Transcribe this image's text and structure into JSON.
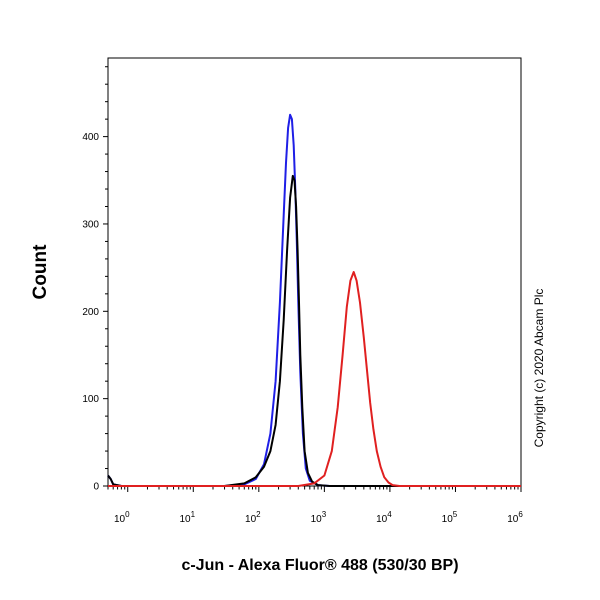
{
  "chart_data": {
    "type": "line",
    "title": "",
    "xlabel": "c-Jun - Alexa Fluor® 488 (530/30 BP)",
    "ylabel": "Count",
    "xscale": "log",
    "xlim": [
      0.5,
      1000000
    ],
    "ylim": [
      0,
      490
    ],
    "y_ticks": [
      0,
      100,
      200,
      300,
      400
    ],
    "x_ticks": [
      {
        "value": 1,
        "base": "10",
        "exp": "0"
      },
      {
        "value": 10,
        "base": "10",
        "exp": "1"
      },
      {
        "value": 100,
        "base": "10",
        "exp": "2"
      },
      {
        "value": 1000,
        "base": "10",
        "exp": "3"
      },
      {
        "value": 10000,
        "base": "10",
        "exp": "4"
      },
      {
        "value": 100000,
        "base": "10",
        "exp": "5"
      },
      {
        "value": 1000000,
        "base": "10",
        "exp": "6"
      }
    ],
    "grid": false,
    "series": [
      {
        "color": "#1f1fe6",
        "x": [
          0.5,
          0.55,
          0.6,
          0.8,
          5,
          30,
          60,
          90,
          120,
          150,
          180,
          210,
          240,
          260,
          280,
          300,
          320,
          340,
          360,
          380,
          400,
          430,
          470,
          520,
          600,
          800,
          1200,
          10000,
          1000000
        ],
        "y": [
          12,
          8,
          2,
          0,
          0,
          0,
          2,
          8,
          25,
          60,
          120,
          210,
          310,
          370,
          410,
          425,
          420,
          390,
          340,
          280,
          210,
          130,
          60,
          20,
          6,
          1,
          0,
          0,
          0
        ]
      },
      {
        "color": "#000000",
        "x": [
          0.5,
          0.55,
          0.6,
          0.8,
          5,
          30,
          60,
          90,
          120,
          150,
          180,
          210,
          240,
          270,
          300,
          330,
          350,
          370,
          390,
          410,
          430,
          460,
          500,
          560,
          650,
          800,
          1200,
          10000,
          1000000
        ],
        "y": [
          12,
          8,
          2,
          0,
          0,
          0,
          3,
          10,
          22,
          40,
          70,
          120,
          190,
          270,
          330,
          355,
          350,
          320,
          270,
          210,
          150,
          90,
          40,
          15,
          5,
          1,
          0,
          0,
          0
        ]
      },
      {
        "color": "#e02020",
        "x": [
          0.5,
          100,
          400,
          700,
          1000,
          1300,
          1600,
          1900,
          2200,
          2500,
          2800,
          3100,
          3500,
          4000,
          4500,
          5000,
          5600,
          6300,
          7200,
          8200,
          9500,
          11000,
          14000,
          20000,
          1000000
        ],
        "y": [
          0,
          0,
          0,
          3,
          12,
          40,
          90,
          150,
          205,
          235,
          245,
          235,
          210,
          170,
          130,
          95,
          65,
          40,
          22,
          10,
          4,
          1,
          0,
          0,
          0
        ]
      }
    ]
  },
  "copyright": "Copyright (c) 2020 Abcam Plc"
}
